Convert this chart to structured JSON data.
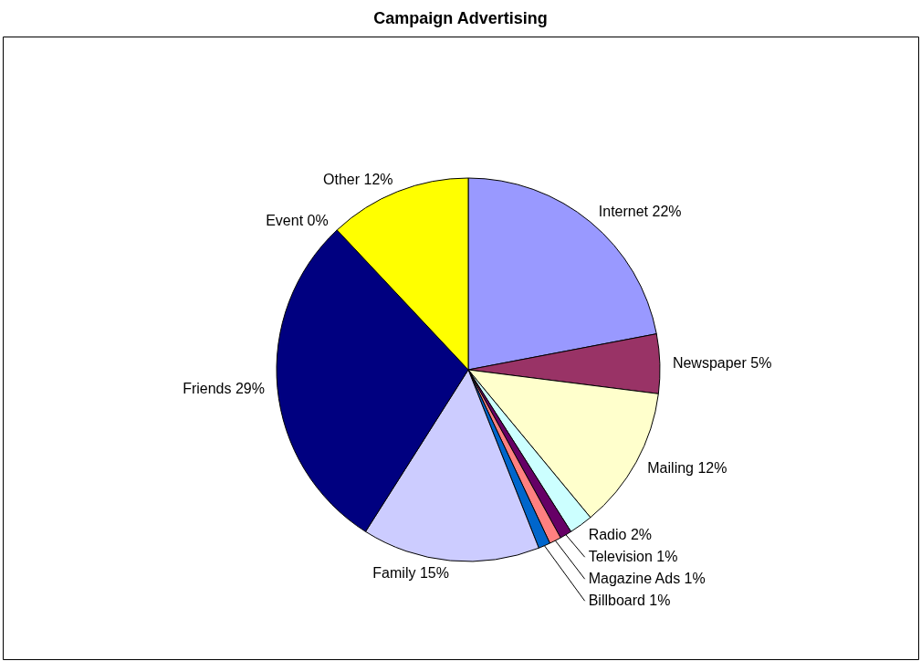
{
  "chart_data": {
    "type": "pie",
    "title": "Campaign Advertising",
    "categories": [
      "Internet",
      "Newspaper",
      "Mailing",
      "Radio",
      "Television",
      "Magazine Ads",
      "Billboard",
      "Family",
      "Friends",
      "Event",
      "Other"
    ],
    "values": [
      22,
      5,
      12,
      2,
      1,
      1,
      1,
      15,
      29,
      0,
      12
    ],
    "value_labels": [
      "22%",
      "5%",
      "12%",
      "2%",
      "1%",
      "1%",
      "1%",
      "15%",
      "29%",
      "0%",
      "12%"
    ],
    "colors": [
      "#9999ff",
      "#993366",
      "#ffffcc",
      "#ccffff",
      "#660066",
      "#ff8080",
      "#0066cc",
      "#ccccff",
      "#000080",
      "#ff00ff",
      "#ffff00"
    ]
  }
}
